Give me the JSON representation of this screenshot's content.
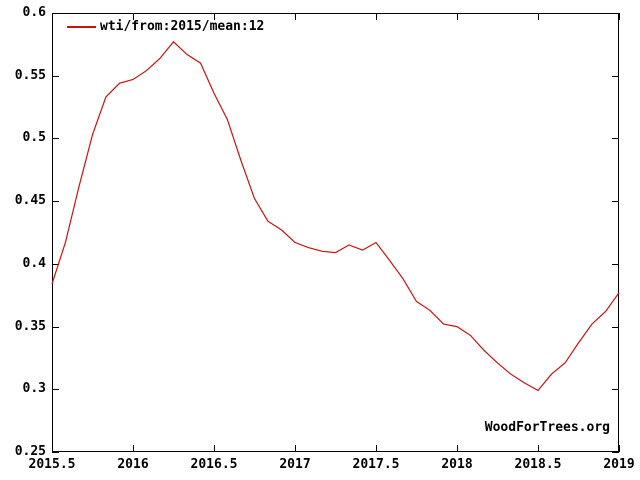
{
  "watermark": "WoodForTrees.org",
  "colors": {
    "line": "#cc1111",
    "axis": "#000000",
    "background": "#ffffff"
  },
  "chart_data": {
    "type": "line",
    "title": "",
    "xlabel": "",
    "ylabel": "",
    "grid": false,
    "legend_position": "top-left",
    "xlim": [
      2015.5,
      2019
    ],
    "ylim": [
      0.25,
      0.6
    ],
    "x_ticks": [
      {
        "value": 2015.5,
        "label": "2015.5"
      },
      {
        "value": 2016,
        "label": "2016"
      },
      {
        "value": 2016.5,
        "label": "2016.5"
      },
      {
        "value": 2017,
        "label": "2017"
      },
      {
        "value": 2017.5,
        "label": "2017.5"
      },
      {
        "value": 2018,
        "label": "2018"
      },
      {
        "value": 2018.5,
        "label": "2018.5"
      },
      {
        "value": 2019,
        "label": "2019"
      }
    ],
    "y_ticks": [
      {
        "value": 0.6,
        "label": "0.6"
      },
      {
        "value": 0.55,
        "label": "0.55"
      },
      {
        "value": 0.5,
        "label": "0.5"
      },
      {
        "value": 0.45,
        "label": "0.45"
      },
      {
        "value": 0.4,
        "label": "0.4"
      },
      {
        "value": 0.35,
        "label": "0.35"
      },
      {
        "value": 0.3,
        "label": "0.3"
      },
      {
        "value": 0.25,
        "label": "0.25"
      }
    ],
    "x": [
      2015.5,
      2015.583,
      2015.667,
      2015.75,
      2015.833,
      2015.917,
      2016.0,
      2016.083,
      2016.167,
      2016.25,
      2016.333,
      2016.417,
      2016.5,
      2016.583,
      2016.667,
      2016.75,
      2016.833,
      2016.917,
      2017.0,
      2017.083,
      2017.167,
      2017.25,
      2017.333,
      2017.417,
      2017.5,
      2017.583,
      2017.667,
      2017.75,
      2017.833,
      2017.917,
      2018.0,
      2018.083,
      2018.167,
      2018.25,
      2018.333,
      2018.417,
      2018.5,
      2018.583,
      2018.667,
      2018.75,
      2018.833,
      2018.917,
      2019.0
    ],
    "series": [
      {
        "name": "wti/from:2015/mean:12",
        "color": "#cc1111",
        "values": [
          0.384,
          0.417,
          0.462,
          0.503,
          0.533,
          0.544,
          0.547,
          0.554,
          0.564,
          0.577,
          0.567,
          0.56,
          0.536,
          0.515,
          0.482,
          0.452,
          0.434,
          0.427,
          0.417,
          0.413,
          0.41,
          0.409,
          0.415,
          0.411,
          0.417,
          0.403,
          0.388,
          0.37,
          0.363,
          0.352,
          0.35,
          0.343,
          0.331,
          0.321,
          0.312,
          0.305,
          0.299,
          0.312,
          0.321,
          0.337,
          0.352,
          0.362,
          0.377
        ]
      }
    ]
  }
}
